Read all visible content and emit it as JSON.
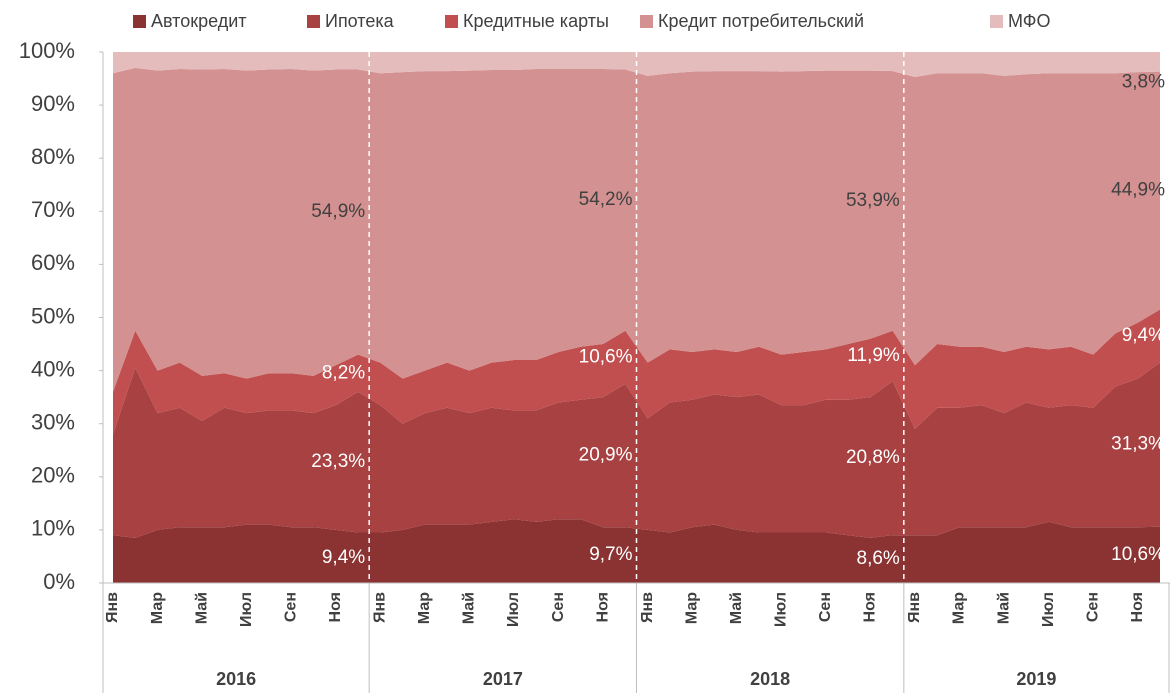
{
  "chart_data": {
    "type": "area",
    "categories": [
      "Янв",
      null,
      "Мар",
      null,
      "Май",
      null,
      "Июл",
      null,
      "Сен",
      null,
      "Ноя",
      null,
      "Янв",
      null,
      "Мар",
      null,
      "Май",
      null,
      "Июл",
      null,
      "Сен",
      null,
      "Ноя",
      null,
      "Янв",
      null,
      "Мар",
      null,
      "Май",
      null,
      "Июл",
      null,
      "Сен",
      null,
      "Ноя",
      null,
      "Янв",
      null,
      "Мар",
      null,
      "Май",
      null,
      "Июл",
      null,
      "Сен",
      null,
      "Ноя",
      null
    ],
    "groups": [
      "2016",
      "2017",
      "2018",
      "2019"
    ],
    "stacked": true,
    "ylim": [
      0,
      100
    ],
    "yticks": [
      {
        "value": 0,
        "label": "0%"
      },
      {
        "value": 10,
        "label": "10%"
      },
      {
        "value": 20,
        "label": "20%"
      },
      {
        "value": 30,
        "label": "30%"
      },
      {
        "value": 40,
        "label": "40%"
      },
      {
        "value": 50,
        "label": "50%"
      },
      {
        "value": 60,
        "label": "60%"
      },
      {
        "value": 70,
        "label": "70%"
      },
      {
        "value": 80,
        "label": "80%"
      },
      {
        "value": 90,
        "label": "90%"
      },
      {
        "value": 100,
        "label": "100%"
      }
    ],
    "legend": "top",
    "series": [
      {
        "name": "Автокредит",
        "color": "#8b3333",
        "values": [
          9,
          8.5,
          10,
          10.5,
          10.5,
          10.5,
          11,
          11,
          10.5,
          10.5,
          10,
          9.5,
          9.5,
          10,
          11,
          11,
          11,
          11.5,
          12,
          11.5,
          12,
          12,
          10.5,
          10.5,
          10,
          9.5,
          10.5,
          11,
          10,
          9.5,
          9.5,
          9.5,
          9.5,
          9,
          8.5,
          9,
          9,
          9,
          10.5,
          10.5,
          10.5,
          10.5,
          11.5,
          10.5,
          10.5,
          10.5,
          10.5,
          10.6
        ]
      },
      {
        "name": "Ипотека",
        "color": "#a84141",
        "values": [
          19,
          32,
          22,
          22.5,
          20,
          22.5,
          21,
          21.5,
          22,
          21.5,
          23.5,
          26.5,
          24,
          20,
          21,
          22,
          21,
          21.5,
          20.5,
          21,
          22,
          22.5,
          24.5,
          27,
          21,
          24.5,
          24,
          24.5,
          25,
          26,
          24,
          24,
          25,
          25.5,
          26.5,
          29,
          20,
          24,
          22.5,
          23,
          21.5,
          23.5,
          21.5,
          23,
          22.5,
          26.5,
          28,
          30.9
        ]
      },
      {
        "name": "Кредитные карты",
        "color": "#c14f4f",
        "values": [
          8,
          7,
          8,
          8.5,
          8.5,
          6.5,
          6.5,
          7,
          7,
          7,
          7.5,
          7,
          8,
          8.5,
          8,
          8.5,
          8,
          8.5,
          9.5,
          9.5,
          9.5,
          10,
          10,
          10,
          10.5,
          10,
          9,
          8.5,
          8.5,
          9,
          9.5,
          10,
          9.5,
          10.5,
          11,
          9.5,
          12,
          12,
          11.5,
          11,
          11.5,
          10.5,
          11,
          11,
          10,
          10,
          10.5,
          10
        ]
      },
      {
        "name": "Кредит потребительский",
        "color": "#d39191",
        "values": [
          60,
          49.5,
          56.5,
          55.3,
          57.7,
          57.3,
          58,
          57.2,
          57.3,
          57.5,
          55.7,
          53.7,
          54.5,
          57.7,
          56.4,
          54.9,
          56.5,
          55.1,
          54.6,
          54.8,
          53.3,
          52.3,
          51.8,
          49.2,
          54,
          52,
          52.8,
          52.4,
          52.9,
          51.9,
          53.3,
          52.9,
          52.5,
          51.5,
          50.5,
          48.9,
          54.3,
          51,
          51.5,
          51.5,
          52,
          51.3,
          52,
          51.5,
          53,
          49,
          47.2,
          44.8
        ]
      },
      {
        "name": "МФО",
        "color": "#e5bcbc",
        "values": [
          4,
          3,
          3.5,
          3.2,
          3.3,
          3.2,
          3.5,
          3.3,
          3.2,
          3.5,
          3.3,
          3.3,
          4,
          3.8,
          3.6,
          3.6,
          3.5,
          3.4,
          3.4,
          3.2,
          3.2,
          3.2,
          3.2,
          3.3,
          4.5,
          4,
          3.7,
          3.6,
          3.6,
          3.6,
          3.7,
          3.6,
          3.5,
          3.5,
          3.5,
          3.6,
          4.7,
          4,
          4,
          4,
          4.5,
          4.2,
          4,
          4,
          4,
          4,
          3.8,
          3.7
        ]
      }
    ],
    "data_labels": [
      [
        "9,4%",
        "23,3%",
        "8,2%",
        "54,9%"
      ],
      [
        "9,7%",
        "20,9%",
        "10,6%",
        "54,2%"
      ],
      [
        "8,6%",
        "20,8%",
        "11,9%",
        "53,9%"
      ],
      [
        "10,6%",
        "31,3%",
        "9,4%",
        "44,9%",
        "3,8%"
      ]
    ]
  }
}
